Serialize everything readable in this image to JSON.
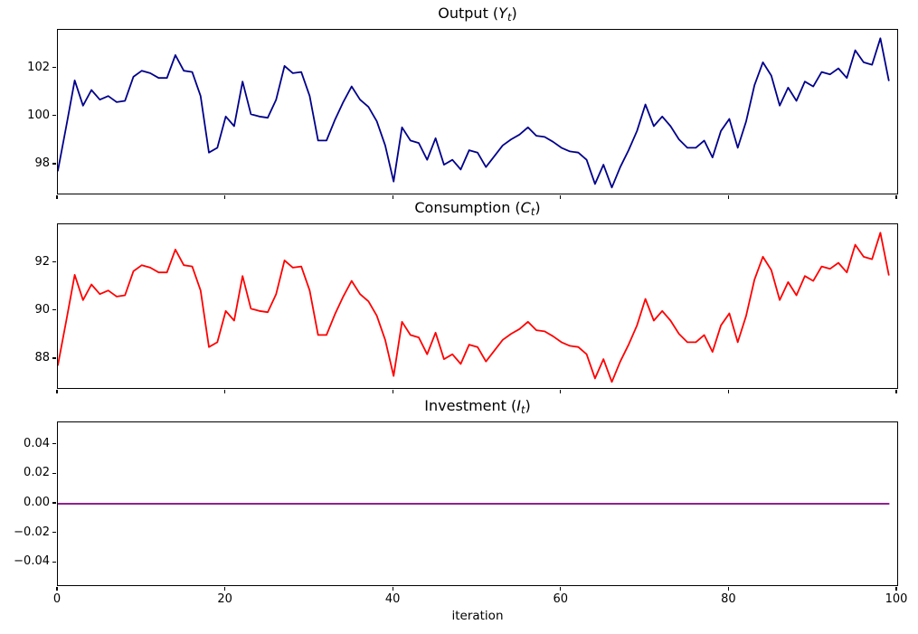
{
  "chart_data": [
    {
      "name": "output",
      "type": "line",
      "title": {
        "prefix": "Output (",
        "variable": "Y",
        "subscript": "t",
        "suffix": ")"
      },
      "color": "#00008B",
      "linewidth": 1.8,
      "xlim": [
        0,
        100
      ],
      "ylim": [
        96.8,
        103.6
      ],
      "xticks": [
        0,
        20,
        40,
        60,
        80,
        100
      ],
      "xtick_labels": null,
      "yticks": [
        98,
        100,
        102
      ],
      "ytick_labels": [
        "98",
        "100",
        "102"
      ],
      "xlabel": "",
      "legend": "none",
      "grid": false,
      "x_start": 0,
      "values": [
        97.75,
        99.6,
        101.5,
        100.45,
        101.1,
        100.7,
        100.85,
        100.6,
        100.65,
        101.65,
        101.9,
        101.8,
        101.6,
        101.6,
        102.55,
        101.9,
        101.85,
        100.85,
        98.5,
        98.7,
        100.0,
        99.6,
        101.45,
        100.1,
        100.0,
        99.95,
        100.7,
        102.1,
        101.8,
        101.85,
        100.85,
        99.0,
        99.0,
        99.85,
        100.6,
        101.25,
        100.7,
        100.4,
        99.8,
        98.8,
        97.3,
        99.55,
        99.0,
        98.9,
        98.2,
        99.1,
        98.0,
        98.2,
        97.8,
        98.6,
        98.5,
        97.9,
        98.35,
        98.8,
        99.05,
        99.25,
        99.55,
        99.2,
        99.15,
        98.95,
        98.7,
        98.55,
        98.5,
        98.2,
        97.2,
        98.0,
        97.05,
        97.9,
        98.6,
        99.4,
        100.5,
        99.6,
        100.0,
        99.6,
        99.05,
        98.7,
        98.7,
        99.0,
        98.3,
        99.4,
        99.9,
        98.7,
        99.8,
        101.3,
        102.25,
        101.7,
        100.45,
        101.2,
        100.65,
        101.45,
        101.25,
        101.85,
        101.75,
        102.0,
        101.6,
        102.75,
        102.25,
        102.15,
        103.25,
        101.5
      ]
    },
    {
      "name": "consumption",
      "type": "line",
      "title": {
        "prefix": "Consumption (",
        "variable": "C",
        "subscript": "t",
        "suffix": ")"
      },
      "color": "#FF0000",
      "linewidth": 1.8,
      "xlim": [
        0,
        100
      ],
      "ylim": [
        86.8,
        93.6
      ],
      "xticks": [
        0,
        20,
        40,
        60,
        80,
        100
      ],
      "xtick_labels": null,
      "yticks": [
        88,
        90,
        92
      ],
      "ytick_labels": [
        "88",
        "90",
        "92"
      ],
      "xlabel": "",
      "legend": "none",
      "grid": false,
      "x_start": 0,
      "values": [
        87.75,
        89.6,
        91.5,
        90.45,
        91.1,
        90.7,
        90.85,
        90.6,
        90.65,
        91.65,
        91.9,
        91.8,
        91.6,
        91.6,
        92.55,
        91.9,
        91.85,
        90.85,
        88.5,
        88.7,
        90.0,
        89.6,
        91.45,
        90.1,
        90.0,
        89.95,
        90.7,
        92.1,
        91.8,
        91.85,
        90.85,
        89.0,
        89.0,
        89.85,
        90.6,
        91.25,
        90.7,
        90.4,
        89.8,
        88.8,
        87.3,
        89.55,
        89.0,
        88.9,
        88.2,
        89.1,
        88.0,
        88.2,
        87.8,
        88.6,
        88.5,
        87.9,
        88.35,
        88.8,
        89.05,
        89.25,
        89.55,
        89.2,
        89.15,
        88.95,
        88.7,
        88.55,
        88.5,
        88.2,
        87.2,
        88.0,
        87.05,
        87.9,
        88.6,
        89.4,
        90.5,
        89.6,
        90.0,
        89.6,
        89.05,
        88.7,
        88.7,
        89.0,
        88.3,
        89.4,
        89.9,
        88.7,
        89.8,
        91.3,
        92.25,
        91.7,
        90.45,
        91.2,
        90.65,
        91.45,
        91.25,
        91.85,
        91.75,
        92.0,
        91.6,
        92.75,
        92.25,
        92.15,
        93.25,
        91.5
      ]
    },
    {
      "name": "investment",
      "type": "line",
      "title": {
        "prefix": "Investment (",
        "variable": "I",
        "subscript": "t",
        "suffix": ")"
      },
      "color": "#800080",
      "linewidth": 1.8,
      "xlim": [
        0,
        100
      ],
      "ylim": [
        -0.055,
        0.055
      ],
      "xticks": [
        0,
        20,
        40,
        60,
        80,
        100
      ],
      "xtick_labels": [
        "0",
        "20",
        "40",
        "60",
        "80",
        "100"
      ],
      "yticks": [
        0.04,
        0.02,
        0.0,
        -0.02,
        -0.04
      ],
      "ytick_labels": [
        "0.04",
        "0.02",
        "0.00",
        "−0.02",
        "−0.04"
      ],
      "xlabel": "iteration",
      "legend": "none",
      "grid": false,
      "constant": 0.0,
      "x_range": [
        0,
        99
      ]
    }
  ]
}
